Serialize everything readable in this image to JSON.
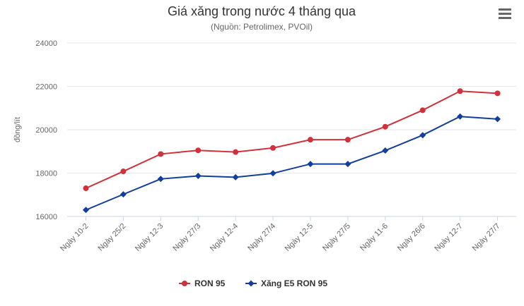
{
  "chart_data": {
    "type": "line",
    "title": "Giá xăng trong nước 4 tháng qua",
    "subtitle": "(Nguồn: Petrolimex, PVOil)",
    "xlabel": "",
    "ylabel": "đồng/lít",
    "categories": [
      "Ngày 10-2",
      "Ngày 25/2",
      "Ngày 12-3",
      "Ngày 27/3",
      "Ngày 12-4",
      "Ngày 27/4",
      "Ngày 12-5",
      "Ngày 27/5",
      "Ngày 11-6",
      "Ngày 26/6",
      "Ngày 12-7",
      "Ngày 27/7"
    ],
    "ylim": [
      16000,
      24000
    ],
    "yticks": [
      "16000",
      "18000",
      "20000",
      "22000",
      "24000"
    ],
    "grid": true,
    "legend_position": "bottom",
    "series": [
      {
        "name": "RON 95",
        "color": "#d0313a",
        "marker": "circle",
        "values": [
          17300,
          18080,
          18880,
          19050,
          18970,
          19160,
          19540,
          19540,
          20140,
          20900,
          21780,
          21680
        ]
      },
      {
        "name": "Xăng E5 RON 95",
        "color": "#123f9e",
        "marker": "diamond",
        "values": [
          16300,
          17020,
          17730,
          17870,
          17810,
          17990,
          18420,
          18420,
          19040,
          19750,
          20610,
          20490
        ]
      }
    ]
  },
  "menu_icon": "hamburger-menu-icon"
}
